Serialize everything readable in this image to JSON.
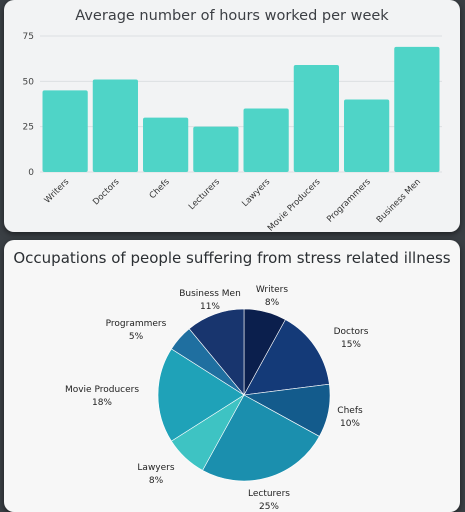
{
  "chart_data": [
    {
      "type": "bar",
      "title": "Average number of hours worked per week",
      "categories": [
        "Writers",
        "Doctors",
        "Chefs",
        "Lecturers",
        "Lawyers",
        "Movie Producers",
        "Programmers",
        "Business Men"
      ],
      "values": [
        45,
        51,
        30,
        25,
        35,
        59,
        40,
        69
      ],
      "yticks": [
        0,
        25,
        50,
        75
      ],
      "ylim": [
        0,
        75
      ],
      "grid": true,
      "bar_color": "#4fd4c7"
    },
    {
      "type": "pie",
      "title": "Occupations of people suffering from stress related illness",
      "slices": [
        {
          "label": "Writers",
          "value": 8,
          "value_label": "8%",
          "color": "#0b1f4d"
        },
        {
          "label": "Doctors",
          "value": 15,
          "value_label": "15%",
          "color": "#143a78"
        },
        {
          "label": "Chefs",
          "value": 10,
          "value_label": "10%",
          "color": "#135b8c"
        },
        {
          "label": "Lecturers",
          "value": 25,
          "value_label": "25%",
          "color": "#1b8fae"
        },
        {
          "label": "Lawyers",
          "value": 8,
          "value_label": "8%",
          "color": "#3ec3c3"
        },
        {
          "label": "Movie Producers",
          "value": 18,
          "value_label": "18%",
          "color": "#1fa2b8"
        },
        {
          "label": "Programmers",
          "value": 5,
          "value_label": "5%",
          "color": "#1f6fa0"
        },
        {
          "label": "Business Men",
          "value": 11,
          "value_label": "11%",
          "color": "#18356e"
        }
      ]
    }
  ]
}
